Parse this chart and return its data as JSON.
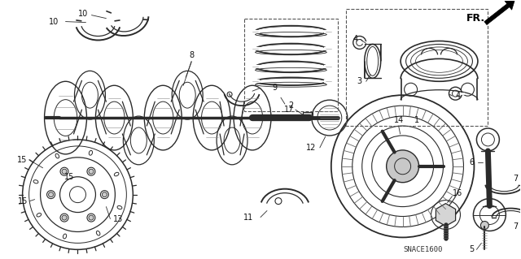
{
  "fig_width": 6.4,
  "fig_height": 3.19,
  "dpi": 100,
  "bg": "#ffffff",
  "snace_text": "SNACE1600",
  "fr_text": "FR.",
  "line_color": "#2a2a2a",
  "label_color": "#111111",
  "label_fs": 7.0
}
